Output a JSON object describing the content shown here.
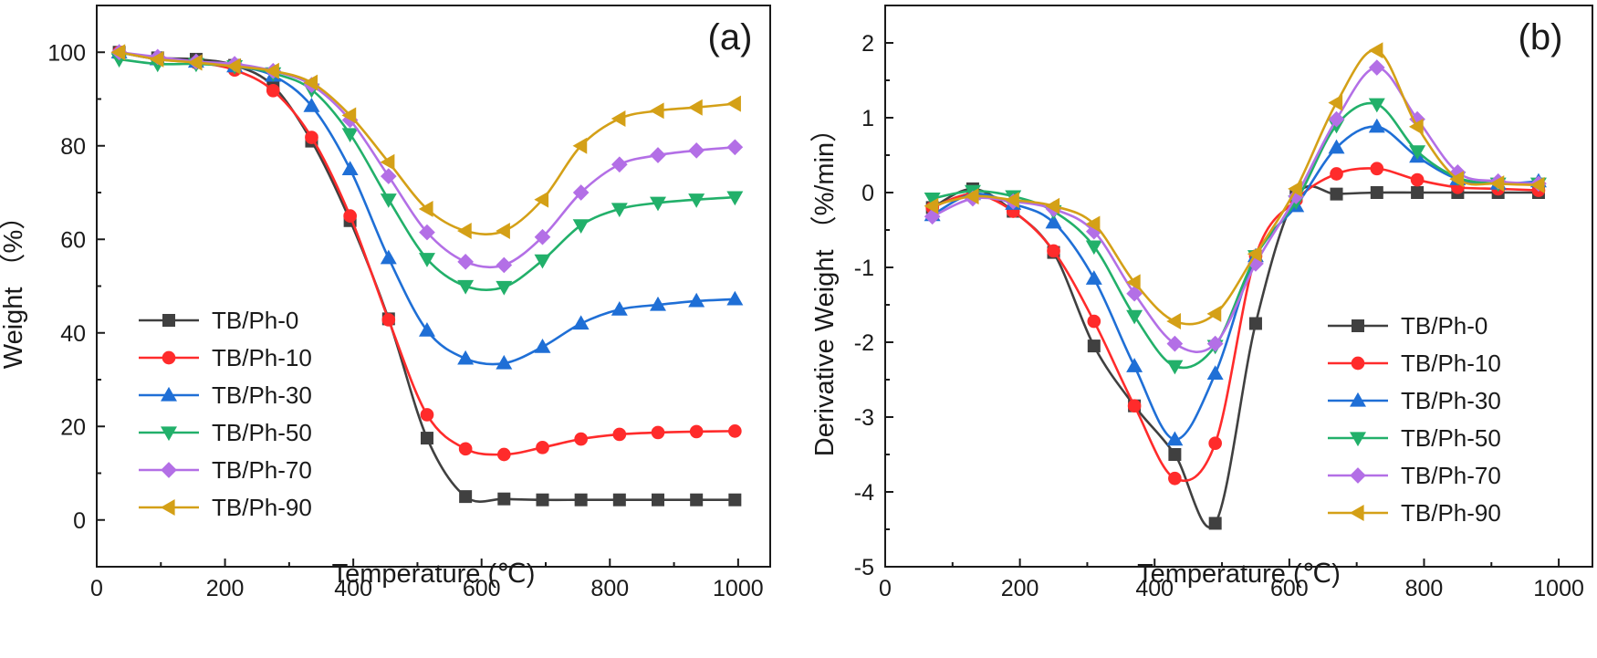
{
  "chart_data": [
    {
      "type": "line",
      "panel_label": "(a)",
      "title": "",
      "xlabel": "Temperature (℃)",
      "ylabel": "Weight （%）",
      "xlim": [
        0,
        1050
      ],
      "ylim": [
        -10,
        110
      ],
      "xticks": [
        0,
        200,
        400,
        600,
        800,
        1000
      ],
      "yticks": [
        0,
        20,
        40,
        60,
        80,
        100
      ],
      "legend_position": "center-left",
      "series": [
        {
          "name": "TB/Ph-0",
          "color": "#404040",
          "marker": "square",
          "x": [
            35,
            95,
            155,
            215,
            275,
            335,
            395,
            455,
            515,
            575,
            635,
            695,
            755,
            815,
            875,
            935,
            995
          ],
          "y": [
            100,
            98.8,
            98.5,
            97.2,
            92.8,
            81,
            64,
            43,
            17.5,
            5,
            4.5,
            4.3,
            4.3,
            4.3,
            4.3,
            4.3,
            4.3
          ]
        },
        {
          "name": "TB/Ph-10",
          "color": "#ff2b2b",
          "marker": "circle",
          "x": [
            35,
            95,
            155,
            215,
            275,
            335,
            395,
            455,
            515,
            575,
            635,
            695,
            755,
            815,
            875,
            935,
            995
          ],
          "y": [
            100,
            98.5,
            97.8,
            96.2,
            91.8,
            81.8,
            65,
            42.8,
            22.5,
            15.2,
            14,
            15.5,
            17.3,
            18.3,
            18.7,
            18.9,
            19
          ]
        },
        {
          "name": "TB/Ph-30",
          "color": "#1f6fd6",
          "marker": "triangle-up",
          "x": [
            35,
            95,
            155,
            215,
            275,
            335,
            395,
            455,
            515,
            575,
            635,
            695,
            755,
            815,
            875,
            935,
            995
          ],
          "y": [
            100,
            98.5,
            98,
            97,
            95,
            88.5,
            75,
            56,
            40.5,
            34.5,
            33.5,
            37,
            42,
            45,
            46,
            46.8,
            47.2
          ]
        },
        {
          "name": "TB/Ph-50",
          "color": "#22b06a",
          "marker": "triangle-down",
          "x": [
            35,
            95,
            155,
            215,
            275,
            335,
            395,
            455,
            515,
            575,
            635,
            695,
            755,
            815,
            875,
            935,
            995
          ],
          "y": [
            98.5,
            97.5,
            97.5,
            97,
            95.5,
            92,
            82.5,
            68.5,
            55.8,
            50,
            49.8,
            55.5,
            63,
            66.5,
            67.8,
            68.5,
            69
          ]
        },
        {
          "name": "TB/Ph-70",
          "color": "#b36fe6",
          "marker": "diamond",
          "x": [
            35,
            95,
            155,
            215,
            275,
            335,
            395,
            455,
            515,
            575,
            635,
            695,
            755,
            815,
            875,
            935,
            995
          ],
          "y": [
            100,
            99,
            98,
            97.5,
            96,
            93,
            85.5,
            73.5,
            61.5,
            55.2,
            54.5,
            60.5,
            70,
            76,
            78,
            79,
            79.7
          ]
        },
        {
          "name": "TB/Ph-90",
          "color": "#d4a017",
          "marker": "triangle-left",
          "x": [
            35,
            95,
            155,
            215,
            275,
            335,
            395,
            455,
            515,
            575,
            635,
            695,
            755,
            815,
            875,
            935,
            995
          ],
          "y": [
            100,
            98.5,
            97.8,
            97,
            96,
            93.5,
            86.5,
            76.5,
            66.5,
            61.8,
            61.8,
            68.5,
            80,
            85.8,
            87.5,
            88.2,
            89
          ]
        }
      ]
    },
    {
      "type": "line",
      "panel_label": "(b)",
      "title": "",
      "xlabel": "Temperature (℃)",
      "ylabel": "Derivative Weight （%/min）",
      "xlim": [
        0,
        1050
      ],
      "ylim": [
        -5,
        2.5
      ],
      "xticks": [
        0,
        200,
        400,
        600,
        800,
        1000
      ],
      "yticks": [
        -5,
        -4,
        -3,
        -2,
        -1,
        0,
        1,
        2
      ],
      "legend_position": "lower-right",
      "series": [
        {
          "name": "TB/Ph-0",
          "color": "#404040",
          "marker": "square",
          "x": [
            70,
            130,
            190,
            250,
            310,
            370,
            430,
            490,
            550,
            610,
            670,
            730,
            790,
            850,
            910,
            970
          ],
          "y": [
            -0.2,
            0.05,
            -0.25,
            -0.8,
            -2.05,
            -2.85,
            -3.5,
            -4.42,
            -1.75,
            -0.05,
            -0.02,
            0,
            0,
            0,
            0,
            0
          ]
        },
        {
          "name": "TB/Ph-10",
          "color": "#ff2b2b",
          "marker": "circle",
          "x": [
            70,
            130,
            190,
            250,
            310,
            370,
            430,
            490,
            550,
            610,
            670,
            730,
            790,
            850,
            910,
            970
          ],
          "y": [
            -0.2,
            -0.02,
            -0.25,
            -0.78,
            -1.72,
            -2.85,
            -3.82,
            -3.35,
            -0.85,
            -0.1,
            0.25,
            0.32,
            0.17,
            0.07,
            0.05,
            0.03
          ]
        },
        {
          "name": "TB/Ph-30",
          "color": "#1f6fd6",
          "marker": "triangle-up",
          "x": [
            70,
            130,
            190,
            250,
            310,
            370,
            430,
            490,
            550,
            610,
            670,
            730,
            790,
            850,
            910,
            970
          ],
          "y": [
            -0.3,
            -0.02,
            -0.15,
            -0.4,
            -1.15,
            -2.32,
            -3.3,
            -2.42,
            -0.85,
            -0.18,
            0.6,
            0.88,
            0.48,
            0.18,
            0.12,
            0.15
          ]
        },
        {
          "name": "TB/Ph-50",
          "color": "#22b06a",
          "marker": "triangle-down",
          "x": [
            70,
            130,
            190,
            250,
            310,
            370,
            430,
            490,
            550,
            610,
            670,
            730,
            790,
            850,
            910,
            970
          ],
          "y": [
            -0.08,
            0.02,
            -0.05,
            -0.25,
            -0.72,
            -1.65,
            -2.32,
            -2.05,
            -0.85,
            -0.12,
            0.9,
            1.18,
            0.55,
            0.2,
            0.12,
            0.12
          ]
        },
        {
          "name": "TB/Ph-70",
          "color": "#b36fe6",
          "marker": "diamond",
          "x": [
            70,
            130,
            190,
            250,
            310,
            370,
            430,
            490,
            550,
            610,
            670,
            730,
            790,
            850,
            910,
            970
          ],
          "y": [
            -0.32,
            -0.08,
            -0.12,
            -0.22,
            -0.52,
            -1.35,
            -2.02,
            -2.02,
            -0.95,
            -0.05,
            0.98,
            1.67,
            0.98,
            0.27,
            0.15,
            0.12
          ]
        },
        {
          "name": "TB/Ph-90",
          "color": "#d4a017",
          "marker": "triangle-left",
          "x": [
            70,
            130,
            190,
            250,
            310,
            370,
            430,
            490,
            550,
            610,
            670,
            730,
            790,
            850,
            910,
            970
          ],
          "y": [
            -0.18,
            -0.05,
            -0.1,
            -0.18,
            -0.42,
            -1.2,
            -1.72,
            -1.62,
            -0.82,
            0.05,
            1.2,
            1.9,
            0.88,
            0.18,
            0.12,
            0.1
          ]
        }
      ]
    }
  ]
}
